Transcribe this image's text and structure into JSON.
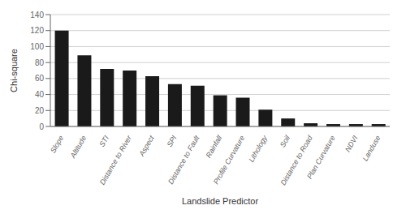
{
  "chart_data": {
    "type": "bar",
    "xlabel": "Landslide Predictor",
    "ylabel": "Chi-square",
    "categories": [
      "Slope",
      "Altitude",
      "STI",
      "Distance to River",
      "Aspect",
      "SPI",
      "Distance to Fault",
      "Rainfall",
      "Profile Curvature",
      "Lithology",
      "Soil",
      "Distance to Road",
      "Plan Curvature",
      "NDVI",
      "Landuse"
    ],
    "values": [
      120,
      89,
      72,
      70,
      63,
      53,
      51,
      39,
      36,
      21,
      10,
      4,
      3,
      3,
      3
    ],
    "color": "#1a1a1a",
    "ylim": [
      0,
      140
    ],
    "yticks": [
      0,
      20,
      40,
      60,
      80,
      100,
      120,
      140
    ],
    "grid": true
  }
}
